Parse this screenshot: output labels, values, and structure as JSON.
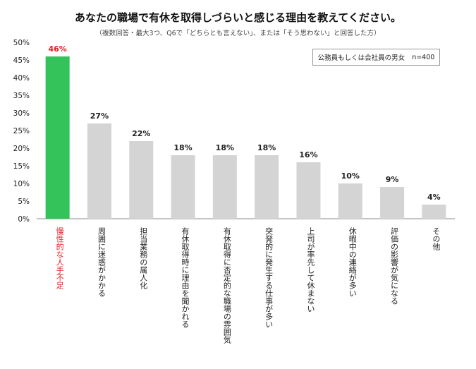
{
  "title": "あなたの職場で有休を取得しづらいと感じる理由を教えてください。",
  "subtitle": "（複数回答・最大3つ、Q6で「どちらとも言えない」、または「そう思わない」と回答した方）",
  "legend": {
    "group": "公務員もしくは会社員の男女",
    "sample": "n=400"
  },
  "chart_data": {
    "type": "bar",
    "title": "あなたの職場で有休を取得しづらいと感じる理由を教えてください。",
    "subtitle": "（複数回答・最大3つ、Q6で「どちらとも言えない」、または「そう思わない」と回答した方）",
    "categories": [
      "慢性的な人手不足",
      "周囲に迷惑がかかる",
      "担当業務の属人化",
      "有休取得時に理由を聞かれる",
      "有休取得に否定的な職場の雰囲気",
      "突発的に発生する仕事が多い",
      "上司が率先して休まない",
      "休暇中の連絡が多い",
      "評価の影響が気になる",
      "その他"
    ],
    "values": [
      46,
      27,
      22,
      18,
      18,
      18,
      16,
      10,
      9,
      4
    ],
    "value_labels": [
      "46%",
      "27%",
      "22%",
      "18%",
      "18%",
      "18%",
      "16%",
      "10%",
      "9%",
      "4%"
    ],
    "yticks": [
      "0%",
      "5%",
      "10%",
      "15%",
      "20%",
      "25%",
      "30%",
      "35%",
      "40%",
      "45%",
      "50%"
    ],
    "ylim": [
      0,
      50
    ],
    "grid": false,
    "legend_position": "top-right",
    "colors": {
      "highlight": "#33c35a",
      "bar": "#d4d4d4",
      "highlight_label": "#e21f1f",
      "text": "#222222",
      "axis": "#888888"
    }
  }
}
